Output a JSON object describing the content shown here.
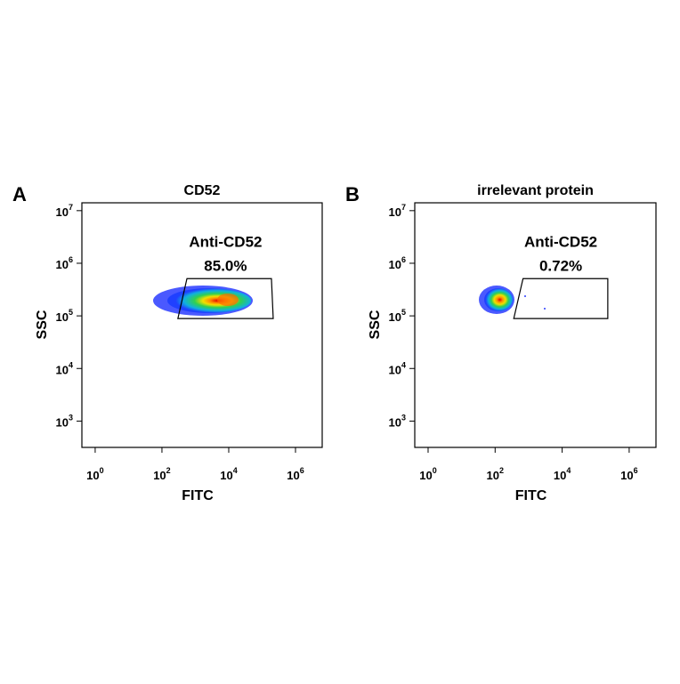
{
  "chart_data": [
    {
      "type": "density",
      "panel_label": "A",
      "title": "CD52",
      "xlabel": "FITC",
      "ylabel": "SSC",
      "log_x": true,
      "log_y": true,
      "xlim": [
        0.4,
        6300000
      ],
      "ylim": [
        316,
        14100000
      ],
      "xticks": [
        {
          "value": 1,
          "label": "10",
          "exponent": "0"
        },
        {
          "value": 100,
          "label": "10",
          "exponent": "2"
        },
        {
          "value": 10000,
          "label": "10",
          "exponent": "4"
        },
        {
          "value": 1000000,
          "label": "10",
          "exponent": "6"
        }
      ],
      "yticks": [
        {
          "value": 1000,
          "label": "10",
          "exponent": "3"
        },
        {
          "value": 10000,
          "label": "10",
          "exponent": "4"
        },
        {
          "value": 100000,
          "label": "10",
          "exponent": "5"
        },
        {
          "value": 1000000,
          "label": "10",
          "exponent": "6"
        },
        {
          "value": 10000000,
          "label": "10",
          "exponent": "7"
        }
      ],
      "gate": {
        "name": "Anti-CD52",
        "percent": "85.0%",
        "x": [
          300,
          560,
          190000,
          215000
        ],
        "y": [
          89000,
          510000,
          510000,
          89000
        ]
      }
    },
    {
      "type": "density",
      "panel_label": "B",
      "title": "irrelevant protein",
      "xlabel": "FITC",
      "ylabel": "SSC",
      "log_x": true,
      "log_y": true,
      "xlim": [
        0.4,
        6300000
      ],
      "ylim": [
        316,
        14100000
      ],
      "xticks": [
        {
          "value": 1,
          "label": "10",
          "exponent": "0"
        },
        {
          "value": 100,
          "label": "10",
          "exponent": "2"
        },
        {
          "value": 10000,
          "label": "10",
          "exponent": "4"
        },
        {
          "value": 1000000,
          "label": "10",
          "exponent": "6"
        }
      ],
      "yticks": [
        {
          "value": 1000,
          "label": "10",
          "exponent": "3"
        },
        {
          "value": 10000,
          "label": "10",
          "exponent": "4"
        },
        {
          "value": 100000,
          "label": "10",
          "exponent": "5"
        },
        {
          "value": 1000000,
          "label": "10",
          "exponent": "6"
        },
        {
          "value": 10000000,
          "label": "10",
          "exponent": "7"
        }
      ],
      "gate": {
        "name": "Anti-CD52",
        "percent": "0.72%",
        "x": [
          360,
          680,
          230000,
          230000
        ],
        "y": [
          89000,
          510000,
          510000,
          89000
        ]
      }
    }
  ]
}
